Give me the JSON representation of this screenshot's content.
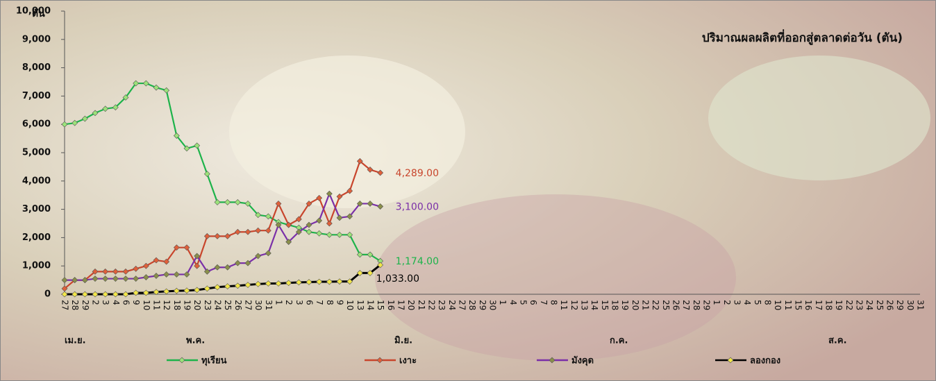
{
  "chart_data": {
    "type": "line",
    "title": "ปริมาณผลผลิตที่ออกสู่ตลาดต่อวัน  (ตัน)",
    "y_axis_label": "ตัน",
    "month_labels": [
      "เม.ย.",
      "พ.ค.",
      "มิ.ย.",
      "ก.ค.",
      "ส.ค."
    ],
    "categories": [
      "27",
      "28",
      "29",
      "2",
      "3",
      "4",
      "6",
      "9",
      "10",
      "11",
      "12",
      "18",
      "19",
      "20",
      "23",
      "24",
      "25",
      "26",
      "27",
      "30",
      "31",
      "1",
      "2",
      "3",
      "6",
      "7",
      "8",
      "9",
      "10",
      "13",
      "14",
      "15",
      "16",
      "17",
      "20",
      "21",
      "22",
      "23",
      "24",
      "27",
      "28",
      "29",
      "30",
      "1",
      "4",
      "5",
      "6",
      "7",
      "8",
      "11",
      "12",
      "13",
      "14",
      "15",
      "18",
      "19",
      "20",
      "21",
      "22",
      "25",
      "26",
      "27",
      "28",
      "29",
      "1",
      "2",
      "3",
      "4",
      "5",
      "8",
      "10",
      "11",
      "15",
      "16",
      "17",
      "18",
      "19",
      "22",
      "23",
      "24",
      "25",
      "26",
      "29",
      "30",
      "31"
    ],
    "series": [
      {
        "name": "ทุเรียน",
        "color": "#1db34a",
        "marker": "#9be37a",
        "end_label": "1,174.00",
        "values": [
          6000,
          6050,
          6200,
          6400,
          6550,
          6600,
          6950,
          7450,
          7450,
          7300,
          7200,
          5600,
          5150,
          5250,
          4250,
          3250,
          3250,
          3250,
          3200,
          2800,
          2750,
          2550,
          2450,
          2350,
          2200,
          2150,
          2100,
          2100,
          2100,
          1400,
          1400,
          1174,
          null,
          null,
          null,
          null,
          null,
          null,
          null,
          null,
          null,
          null,
          null,
          null,
          null,
          null,
          null,
          null,
          null,
          null,
          null,
          null,
          null,
          null,
          null,
          null,
          null,
          null,
          null,
          null,
          null,
          null,
          null,
          null,
          null,
          null,
          null,
          null,
          null,
          null,
          null,
          null,
          null,
          null,
          null,
          null,
          null,
          null,
          null,
          null,
          null,
          null,
          null,
          null,
          null
        ]
      },
      {
        "name": "เงาะ",
        "color": "#c8452c",
        "marker": "#e0603a",
        "end_label": "4,289.00",
        "values": [
          200,
          500,
          500,
          800,
          800,
          800,
          800,
          900,
          1000,
          1200,
          1150,
          1650,
          1650,
          1000,
          2050,
          2050,
          2050,
          2200,
          2200,
          2250,
          2250,
          3200,
          2450,
          2650,
          3200,
          3400,
          2500,
          3450,
          3650,
          4700,
          4400,
          4289,
          null,
          null,
          null,
          null,
          null,
          null,
          null,
          null,
          null,
          null,
          null,
          null,
          null,
          null,
          null,
          null,
          null,
          null,
          null,
          null,
          null,
          null,
          null,
          null,
          null,
          null,
          null,
          null,
          null,
          null,
          null,
          null,
          null,
          null,
          null,
          null,
          null,
          null,
          null,
          null,
          null,
          null,
          null,
          null,
          null,
          null,
          null,
          null,
          null,
          null,
          null,
          null,
          null
        ]
      },
      {
        "name": "มังคุด",
        "color": "#7a2fa8",
        "marker": "#8a8f4a",
        "end_label": "3,100.00",
        "values": [
          500,
          500,
          500,
          550,
          550,
          550,
          550,
          550,
          600,
          650,
          700,
          700,
          700,
          1350,
          800,
          950,
          950,
          1100,
          1100,
          1350,
          1450,
          2450,
          1850,
          2200,
          2450,
          2600,
          3550,
          2700,
          2750,
          3200,
          3200,
          3100,
          null,
          null,
          null,
          null,
          null,
          null,
          null,
          null,
          null,
          null,
          null,
          null,
          null,
          null,
          null,
          null,
          null,
          null,
          null,
          null,
          null,
          null,
          null,
          null,
          null,
          null,
          null,
          null,
          null,
          null,
          null,
          null,
          null,
          null,
          null,
          null,
          null,
          null,
          null,
          null,
          null,
          null,
          null,
          null,
          null,
          null,
          null,
          null,
          null,
          null,
          null,
          null,
          null
        ]
      },
      {
        "name": "ลองกอง",
        "color": "#000000",
        "marker": "#f2e64a",
        "end_label": "1,033.00",
        "values": [
          0,
          0,
          0,
          0,
          0,
          0,
          0,
          50,
          50,
          80,
          100,
          120,
          130,
          150,
          200,
          250,
          280,
          300,
          330,
          360,
          380,
          380,
          400,
          420,
          430,
          440,
          440,
          450,
          450,
          750,
          750,
          1033,
          null,
          null,
          null,
          null,
          null,
          null,
          null,
          null,
          null,
          null,
          null,
          null,
          null,
          null,
          null,
          null,
          null,
          null,
          null,
          null,
          null,
          null,
          null,
          null,
          null,
          null,
          null,
          null,
          null,
          null,
          null,
          null,
          null,
          null,
          null,
          null,
          null,
          null,
          null,
          null,
          null,
          null,
          null,
          null,
          null,
          null,
          null,
          null,
          null,
          null,
          null,
          null,
          null
        ]
      }
    ],
    "ylim": [
      0,
      10000
    ],
    "yticks": [
      0,
      {
        "value": 1000,
        "label": "1,000"
      },
      {
        "value": 2000,
        "label": "2,000"
      },
      {
        "value": 3000,
        "label": "3,000"
      },
      {
        "value": 4000,
        "label": "4,000"
      },
      {
        "value": 5000,
        "label": "5,000"
      },
      {
        "value": 6000,
        "label": "6,000"
      },
      {
        "value": 7000,
        "label": "7,000"
      },
      {
        "value": 8000,
        "label": "8,000"
      },
      {
        "value": 9000,
        "label": "9,000"
      },
      {
        "value": 10000,
        "label": "10,000"
      }
    ]
  }
}
